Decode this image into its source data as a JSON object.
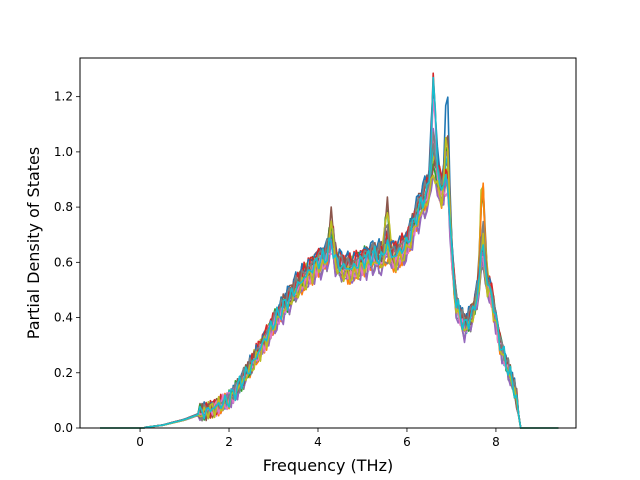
{
  "chart_data": {
    "type": "line",
    "title": "",
    "xlabel": "Frequency (THz)",
    "ylabel": "Partial Density of States",
    "xlim": [
      -1.35,
      9.8
    ],
    "ylim": [
      0.0,
      1.34
    ],
    "xticks": [
      0,
      2,
      4,
      6,
      8
    ],
    "yticks": [
      0.0,
      0.2,
      0.4,
      0.6,
      0.8,
      1.0,
      1.2
    ],
    "xtick_labels": [
      "0",
      "2",
      "4",
      "6",
      "8"
    ],
    "ytick_labels": [
      "0.0",
      "0.2",
      "0.4",
      "0.6",
      "0.8",
      "1.0",
      "1.2"
    ],
    "grid": false,
    "legend": "none",
    "colors": [
      "#1f77b4",
      "#ff7f0e",
      "#2ca02c",
      "#d62728",
      "#9467bd",
      "#8c564b",
      "#e377c2",
      "#7f7f7f",
      "#bcbd22",
      "#17becf"
    ],
    "series_count": 20,
    "x": [
      -0.9,
      -0.5,
      0,
      0.5,
      1,
      1.5,
      2,
      2.25,
      2.5,
      2.75,
      3,
      3.25,
      3.5,
      3.75,
      4,
      4.25,
      4.5,
      4.75,
      5,
      5.25,
      5.5,
      5.75,
      6,
      6.25,
      6.5,
      6.7,
      6.9,
      7.1,
      7.3,
      7.5,
      7.7,
      7.9,
      8.1,
      8.3,
      8.45,
      8.55,
      9.4
    ],
    "base_curve": [
      0,
      0,
      0,
      0.01,
      0.03,
      0.06,
      0.1,
      0.16,
      0.22,
      0.3,
      0.38,
      0.44,
      0.5,
      0.55,
      0.6,
      0.62,
      0.58,
      0.57,
      0.6,
      0.62,
      0.6,
      0.62,
      0.66,
      0.78,
      0.86,
      0.88,
      0.82,
      0.45,
      0.36,
      0.42,
      0.55,
      0.48,
      0.3,
      0.2,
      0.12,
      0,
      0
    ],
    "series_offsets": [
      0.02,
      -0.03,
      0.04,
      0.06,
      -0.02,
      0.05,
      0.01,
      -0.05,
      0.03,
      -0.01,
      0.07,
      -0.04,
      0.0,
      0.05,
      -0.06,
      0.02,
      -0.02,
      0.04,
      -0.03,
      0.01
    ],
    "peaks": [
      {
        "x": 4.3,
        "y": 0.83
      },
      {
        "x": 5.55,
        "y": 0.8
      },
      {
        "x": 6.6,
        "y": 1.28
      },
      {
        "x": 6.9,
        "y": 1.24
      },
      {
        "x": 7.7,
        "y": 0.94
      }
    ]
  }
}
